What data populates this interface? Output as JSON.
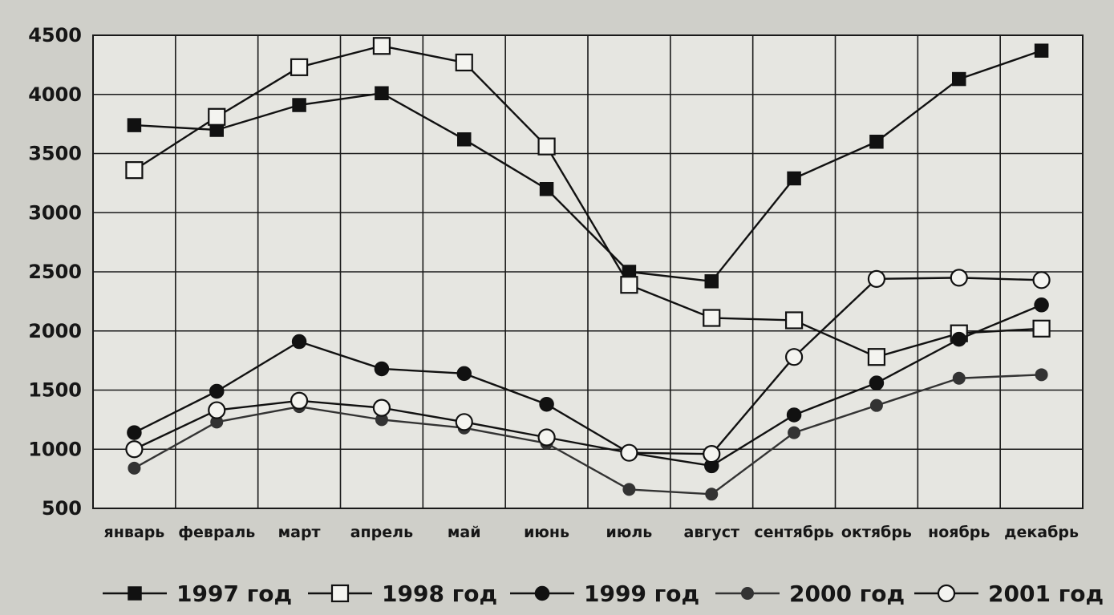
{
  "chart_data": {
    "type": "line",
    "title": "",
    "xlabel": "",
    "ylabel": "",
    "categories": [
      "январь",
      "февраль",
      "март",
      "апрель",
      "май",
      "июнь",
      "июль",
      "август",
      "сентябрь",
      "октябрь",
      "ноябрь",
      "декабрь"
    ],
    "ylim": [
      500,
      4500
    ],
    "yticks": [
      500,
      1000,
      1500,
      2000,
      2500,
      3000,
      3500,
      4000,
      4500
    ],
    "grid": true,
    "legend_position": "bottom",
    "series": [
      {
        "name": "1997 год",
        "marker": "filled-square",
        "color": "#111111",
        "values": [
          3740,
          3700,
          3910,
          4010,
          3620,
          3200,
          2500,
          2420,
          3290,
          3600,
          4130,
          4370
        ]
      },
      {
        "name": "1998 год",
        "marker": "open-square",
        "color": "#111111",
        "values": [
          3360,
          3810,
          4230,
          4410,
          4270,
          3560,
          2390,
          2110,
          2090,
          1780,
          1980,
          2020
        ]
      },
      {
        "name": "1999 год",
        "marker": "filled-circle",
        "color": "#111111",
        "values": [
          1140,
          1490,
          1910,
          1680,
          1640,
          1380,
          970,
          860,
          1290,
          1560,
          1930,
          2220
        ]
      },
      {
        "name": "2000 год",
        "marker": "filled-circle-small",
        "color": "#333333",
        "values": [
          840,
          1230,
          1360,
          1250,
          1180,
          1050,
          660,
          620,
          1140,
          1370,
          1600,
          1630
        ]
      },
      {
        "name": "2001 год",
        "marker": "open-circle",
        "color": "#111111",
        "values": [
          1000,
          1330,
          1410,
          1350,
          1230,
          1100,
          970,
          960,
          1780,
          2440,
          2450,
          2430
        ]
      }
    ]
  }
}
